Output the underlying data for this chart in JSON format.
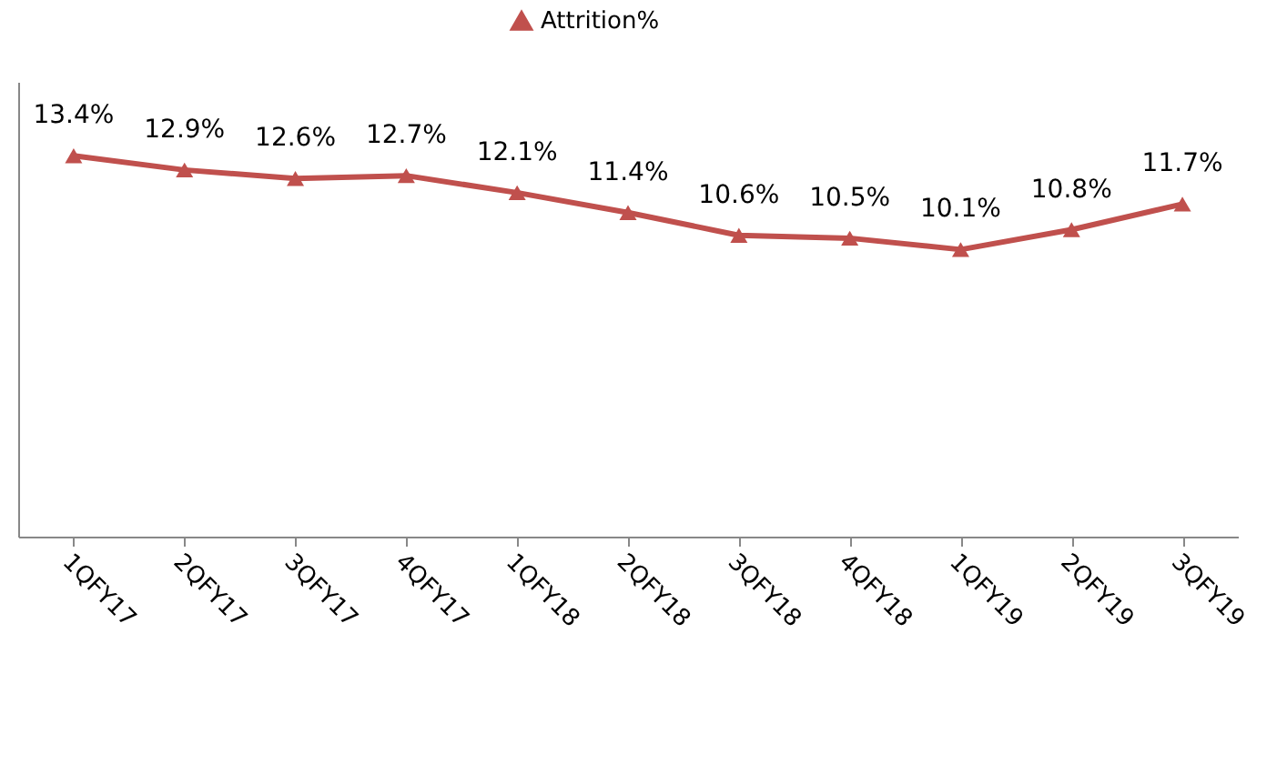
{
  "chart_data": {
    "type": "line",
    "categories": [
      "1QFY17",
      "2QFY17",
      "3QFY17",
      "4QFY17",
      "1QFY18",
      "2QFY18",
      "3QFY18",
      "4QFY18",
      "1QFY19",
      "2QFY19",
      "3QFY19"
    ],
    "series": [
      {
        "name": "Attrition%",
        "color": "#c0504d",
        "values": [
          13.4,
          12.9,
          12.6,
          12.7,
          12.1,
          11.4,
          10.6,
          10.5,
          10.1,
          10.8,
          11.7
        ],
        "value_labels": [
          "13.4%",
          "12.9%",
          "12.6%",
          "12.7%",
          "12.1%",
          "11.4%",
          "10.6%",
          "10.5%",
          "10.1%",
          "10.8%",
          "11.7%"
        ]
      }
    ],
    "ylim": [
      0,
      16
    ],
    "tick_labels": "x",
    "legend": "top",
    "marker": "triangle",
    "line_style": "solid",
    "grid": false
  }
}
